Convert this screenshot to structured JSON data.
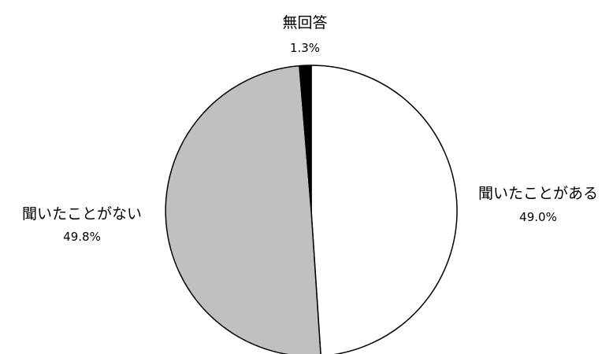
{
  "chart_data": {
    "type": "pie",
    "title": "",
    "start_angle_deg": 0,
    "direction": "clockwise",
    "slices": [
      {
        "label": "聞いたことがある",
        "value": 49.0,
        "value_label": "49.0%",
        "color": "#ffffff"
      },
      {
        "label": "聞いたことがない",
        "value": 49.8,
        "value_label": "49.8%",
        "color": "#c0c0c0"
      },
      {
        "label": "無回答",
        "value": 1.3,
        "value_label": "1.3%",
        "color": "#000000"
      }
    ]
  }
}
